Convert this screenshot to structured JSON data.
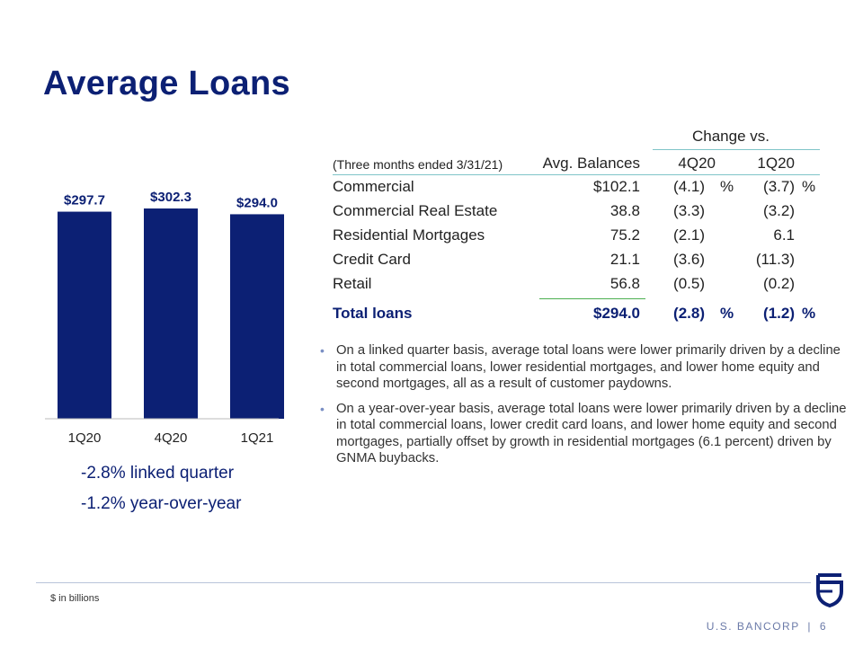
{
  "title": "Average Loans",
  "chart_data": {
    "type": "bar",
    "categories": [
      "1Q20",
      "4Q20",
      "1Q21"
    ],
    "values": [
      297.7,
      302.3,
      294.0
    ],
    "data_labels": [
      "$297.7",
      "$302.3",
      "$294.0"
    ],
    "title": "",
    "xlabel": "",
    "ylabel": "",
    "bar_color": "#0c2074"
  },
  "summary": [
    "-2.8% linked quarter",
    "-1.2% year-over-year"
  ],
  "table": {
    "group_header": "Change vs.",
    "label_header": "(Three months ended 3/31/21)",
    "col_headers": [
      "Avg. Balances",
      "4Q20",
      "1Q20"
    ],
    "rows": [
      {
        "label": "Commercial",
        "avg": "$102.1",
        "c4q20": "(4.1)",
        "c4q20_pct": "%",
        "c1q20": "(3.7)",
        "c1q20_pct": "%"
      },
      {
        "label": "Commercial Real Estate",
        "avg": "38.8",
        "c4q20": "(3.3)",
        "c4q20_pct": "",
        "c1q20": "(3.2)",
        "c1q20_pct": ""
      },
      {
        "label": "Residential Mortgages",
        "avg": "75.2",
        "c4q20": "(2.1)",
        "c4q20_pct": "",
        "c1q20": "6.1",
        "c1q20_pct": ""
      },
      {
        "label": "Credit Card",
        "avg": "21.1",
        "c4q20": "(3.6)",
        "c4q20_pct": "",
        "c1q20": "(11.3)",
        "c1q20_pct": ""
      },
      {
        "label": "Retail",
        "avg": "56.8",
        "c4q20": "(0.5)",
        "c4q20_pct": "",
        "c1q20": "(0.2)",
        "c1q20_pct": ""
      }
    ],
    "total": {
      "label": "Total loans",
      "avg": "$294.0",
      "c4q20": "(2.8)",
      "c4q20_pct": "%",
      "c1q20": "(1.2)",
      "c1q20_pct": "%"
    }
  },
  "bullets": [
    "On a linked quarter basis, average total loans were lower primarily driven by a decline in total commercial loans, lower residential mortgages, and lower home equity and second mortgages, all as a result of customer paydowns.",
    "On a year-over-year basis, average total loans were lower primarily driven by a decline in total commercial loans, lower credit card loans, and lower home equity and second mortgages, partially offset by growth in residential mortgages (6.1 percent) driven by GNMA buybacks."
  ],
  "footnote": "$ in billions",
  "footer": {
    "brand": "U.S. BANCORP",
    "separator": "|",
    "page": "6"
  },
  "colors": {
    "brand_blue": "#0c2074",
    "teal_rule": "#7fc4c8",
    "green_rule": "#4caf50"
  }
}
